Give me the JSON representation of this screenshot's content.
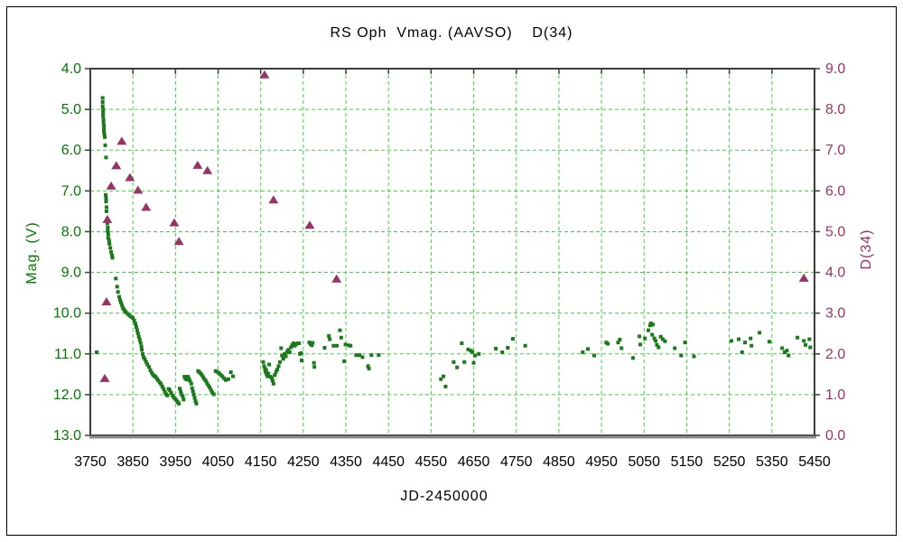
{
  "page": {
    "background": "#ffffff",
    "outer_border_color": "#000000"
  },
  "chart_data": {
    "type": "scatter",
    "title": "RS Oph  Vmag. (AAVSO)    D(34)",
    "xlabel": "JD-2450000",
    "ylabel_left": "Mag. (V)",
    "ylabel_right": "D(34)",
    "x_range": [
      3750,
      5450
    ],
    "y_left_range": [
      4.0,
      13.0
    ],
    "y_left_inverted": true,
    "y_right_range": [
      0.0,
      9.0
    ],
    "grid": true,
    "legend": "none",
    "x_ticks": [
      3750,
      3850,
      3950,
      4050,
      4150,
      4250,
      4350,
      4450,
      4550,
      4650,
      4750,
      4850,
      4950,
      5050,
      5150,
      5250,
      5350,
      5450
    ],
    "x_tick_labels": [
      "3750",
      "3850",
      "3950",
      "4050",
      "4150",
      "4250",
      "4350",
      "4450",
      "4550",
      "4650",
      "4750",
      "4850",
      "4950",
      "5050",
      "5150",
      "5250",
      "5350",
      "5450"
    ],
    "y_left_ticks": [
      4.0,
      5.0,
      6.0,
      7.0,
      8.0,
      9.0,
      10.0,
      11.0,
      12.0,
      13.0
    ],
    "y_left_tick_labels": [
      "4.0",
      "5.0",
      "6.0",
      "7.0",
      "8.0",
      "9.0",
      "10.0",
      "11.0",
      "12.0",
      "13.0"
    ],
    "y_right_ticks": [
      9.0,
      8.0,
      7.0,
      6.0,
      5.0,
      4.0,
      3.0,
      2.0,
      1.0,
      0.0
    ],
    "y_right_tick_labels": [
      "9.0",
      "8.0",
      "7.0",
      "6.0",
      "5.0",
      "4.0",
      "3.0",
      "2.0",
      "1.0",
      "0.0"
    ],
    "colors": {
      "grid": "#3fd43f",
      "frame": "#3c3c3c",
      "frame_bottom": "#909090",
      "vmag_points": "#1a7a1a",
      "d34_points": "#993366",
      "left_axis_text": "#007a00",
      "right_axis_text": "#993366",
      "x_axis_text": "#000000"
    },
    "series": [
      {
        "name": "Vmag (AAVSO)",
        "axis": "left",
        "marker": "square",
        "color": "#1a7a1a",
        "points": [
          [
            3765,
            10.96
          ],
          [
            3779,
            4.72
          ],
          [
            3779,
            4.82
          ],
          [
            3779,
            4.92
          ],
          [
            3780,
            5.0
          ],
          [
            3780,
            5.08
          ],
          [
            3780,
            5.16
          ],
          [
            3781,
            5.25
          ],
          [
            3781,
            5.33
          ],
          [
            3782,
            5.4
          ],
          [
            3782,
            5.47
          ],
          [
            3782,
            5.54
          ],
          [
            3783,
            5.61
          ],
          [
            3784,
            5.68
          ],
          [
            3785,
            5.88
          ],
          [
            3787,
            6.18
          ],
          [
            3786,
            7.1
          ],
          [
            3787,
            7.18
          ],
          [
            3787,
            7.26
          ],
          [
            3788,
            7.4
          ],
          [
            3788,
            7.5
          ],
          [
            3790,
            7.7
          ],
          [
            3790,
            7.8
          ],
          [
            3791,
            7.9
          ],
          [
            3791,
            7.98
          ],
          [
            3792,
            8.06
          ],
          [
            3792,
            8.15
          ],
          [
            3794,
            8.22
          ],
          [
            3795,
            8.3
          ],
          [
            3797,
            8.4
          ],
          [
            3799,
            8.5
          ],
          [
            3801,
            8.58
          ],
          [
            3802,
            8.64
          ],
          [
            3810,
            9.15
          ],
          [
            3813,
            9.35
          ],
          [
            3815,
            9.48
          ],
          [
            3818,
            9.6
          ],
          [
            3820,
            9.68
          ],
          [
            3822,
            9.74
          ],
          [
            3824,
            9.8
          ],
          [
            3826,
            9.86
          ],
          [
            3828,
            9.9
          ],
          [
            3831,
            9.94
          ],
          [
            3834,
            9.98
          ],
          [
            3838,
            10.02
          ],
          [
            3842,
            10.06
          ],
          [
            3846,
            10.09
          ],
          [
            3850,
            10.12
          ],
          [
            3853,
            10.18
          ],
          [
            3856,
            10.26
          ],
          [
            3858,
            10.34
          ],
          [
            3860,
            10.42
          ],
          [
            3862,
            10.5
          ],
          [
            3864,
            10.58
          ],
          [
            3866,
            10.65
          ],
          [
            3868,
            10.73
          ],
          [
            3870,
            10.82
          ],
          [
            3871,
            10.9
          ],
          [
            3873,
            11.0
          ],
          [
            3875,
            11.08
          ],
          [
            3878,
            11.13
          ],
          [
            3881,
            11.2
          ],
          [
            3884,
            11.26
          ],
          [
            3888,
            11.32
          ],
          [
            3891,
            11.4
          ],
          [
            3894,
            11.46
          ],
          [
            3897,
            11.51
          ],
          [
            3900,
            11.54
          ],
          [
            3903,
            11.56
          ],
          [
            3906,
            11.6
          ],
          [
            3909,
            11.65
          ],
          [
            3913,
            11.7
          ],
          [
            3916,
            11.74
          ],
          [
            3919,
            11.8
          ],
          [
            3922,
            11.86
          ],
          [
            3925,
            11.93
          ],
          [
            3928,
            11.99
          ],
          [
            3931,
            12.02
          ],
          [
            3934,
            11.86
          ],
          [
            3937,
            11.9
          ],
          [
            3940,
            11.96
          ],
          [
            3943,
            12.02
          ],
          [
            3946,
            12.07
          ],
          [
            3949,
            12.1
          ],
          [
            3952,
            12.14
          ],
          [
            3955,
            12.18
          ],
          [
            3958,
            12.22
          ],
          [
            3960,
            11.85
          ],
          [
            3962,
            11.92
          ],
          [
            3964,
            11.99
          ],
          [
            3967,
            12.04
          ],
          [
            3969,
            12.12
          ],
          [
            3971,
            11.56
          ],
          [
            3973,
            11.6
          ],
          [
            3976,
            11.63
          ],
          [
            3979,
            11.56
          ],
          [
            3981,
            11.6
          ],
          [
            3984,
            11.66
          ],
          [
            3987,
            11.73
          ],
          [
            3989,
            11.84
          ],
          [
            3991,
            11.92
          ],
          [
            3993,
            12.0
          ],
          [
            3995,
            12.08
          ],
          [
            3997,
            12.16
          ],
          [
            3999,
            12.22
          ],
          [
            4003,
            11.42
          ],
          [
            4006,
            11.45
          ],
          [
            4009,
            11.48
          ],
          [
            4012,
            11.52
          ],
          [
            4015,
            11.57
          ],
          [
            4018,
            11.62
          ],
          [
            4021,
            11.66
          ],
          [
            4024,
            11.72
          ],
          [
            4027,
            11.77
          ],
          [
            4030,
            11.82
          ],
          [
            4033,
            11.88
          ],
          [
            4036,
            11.94
          ],
          [
            4040,
            11.99
          ],
          [
            4044,
            11.42
          ],
          [
            4048,
            11.44
          ],
          [
            4052,
            11.47
          ],
          [
            4056,
            11.51
          ],
          [
            4060,
            11.55
          ],
          [
            4064,
            11.6
          ],
          [
            4068,
            11.64
          ],
          [
            4074,
            11.62
          ],
          [
            4080,
            11.45
          ],
          [
            4085,
            11.55
          ],
          [
            4156,
            11.2
          ],
          [
            4158,
            11.3
          ],
          [
            4160,
            11.36
          ],
          [
            4161,
            11.44
          ],
          [
            4163,
            11.4
          ],
          [
            4164,
            11.5
          ],
          [
            4166,
            11.55
          ],
          [
            4168,
            11.48
          ],
          [
            4170,
            11.26
          ],
          [
            4173,
            11.56
          ],
          [
            4176,
            11.6
          ],
          [
            4178,
            11.66
          ],
          [
            4180,
            11.73
          ],
          [
            4183,
            11.52
          ],
          [
            4186,
            11.44
          ],
          [
            4189,
            11.38
          ],
          [
            4192,
            11.3
          ],
          [
            4195,
            11.2
          ],
          [
            4198,
            10.86
          ],
          [
            4200,
            11.04
          ],
          [
            4203,
            11.12
          ],
          [
            4206,
            11.0
          ],
          [
            4209,
            11.06
          ],
          [
            4212,
            10.95
          ],
          [
            4215,
            10.9
          ],
          [
            4218,
            10.96
          ],
          [
            4221,
            10.84
          ],
          [
            4224,
            10.78
          ],
          [
            4227,
            10.74
          ],
          [
            4230,
            10.8
          ],
          [
            4233,
            10.76
          ],
          [
            4237,
            10.74
          ],
          [
            4240,
            10.74
          ],
          [
            4242,
            11.0
          ],
          [
            4245,
            10.98
          ],
          [
            4246,
            11.16
          ],
          [
            4264,
            10.72
          ],
          [
            4267,
            10.76
          ],
          [
            4270,
            10.79
          ],
          [
            4272,
            10.73
          ],
          [
            4275,
            11.22
          ],
          [
            4276,
            11.32
          ],
          [
            4300,
            10.85
          ],
          [
            4310,
            10.56
          ],
          [
            4312,
            10.64
          ],
          [
            4321,
            10.8
          ],
          [
            4329,
            10.8
          ],
          [
            4336,
            10.42
          ],
          [
            4339,
            10.6
          ],
          [
            4346,
            11.18
          ],
          [
            4349,
            10.77
          ],
          [
            4357,
            10.79
          ],
          [
            4361,
            10.8
          ],
          [
            4374,
            11.03
          ],
          [
            4382,
            11.03
          ],
          [
            4389,
            11.08
          ],
          [
            4402,
            11.3
          ],
          [
            4404,
            11.36
          ],
          [
            4410,
            11.03
          ],
          [
            4427,
            11.03
          ],
          [
            4573,
            11.62
          ],
          [
            4579,
            11.55
          ],
          [
            4584,
            11.8
          ],
          [
            4603,
            11.2
          ],
          [
            4611,
            11.33
          ],
          [
            4622,
            10.74
          ],
          [
            4628,
            11.2
          ],
          [
            4637,
            10.89
          ],
          [
            4643,
            10.92
          ],
          [
            4647,
            10.95
          ],
          [
            4650,
            11.22
          ],
          [
            4653,
            11.04
          ],
          [
            4662,
            11.0
          ],
          [
            4702,
            10.87
          ],
          [
            4717,
            10.96
          ],
          [
            4730,
            10.85
          ],
          [
            4742,
            10.63
          ],
          [
            4771,
            10.8
          ],
          [
            4906,
            10.96
          ],
          [
            4918,
            10.88
          ],
          [
            4933,
            11.04
          ],
          [
            4961,
            10.72
          ],
          [
            4965,
            10.75
          ],
          [
            4989,
            10.72
          ],
          [
            4993,
            10.65
          ],
          [
            4997,
            10.86
          ],
          [
            5024,
            11.1
          ],
          [
            5039,
            10.57
          ],
          [
            5041,
            10.77
          ],
          [
            5052,
            10.62
          ],
          [
            5060,
            10.42
          ],
          [
            5064,
            10.3
          ],
          [
            5066,
            10.25
          ],
          [
            5069,
            10.53
          ],
          [
            5071,
            10.28
          ],
          [
            5074,
            10.62
          ],
          [
            5077,
            10.68
          ],
          [
            5080,
            10.78
          ],
          [
            5084,
            10.84
          ],
          [
            5089,
            10.58
          ],
          [
            5094,
            10.64
          ],
          [
            5099,
            10.69
          ],
          [
            5122,
            10.86
          ],
          [
            5137,
            11.04
          ],
          [
            5146,
            10.72
          ],
          [
            5167,
            11.06
          ],
          [
            5255,
            10.68
          ],
          [
            5272,
            10.64
          ],
          [
            5280,
            10.96
          ],
          [
            5287,
            10.72
          ],
          [
            5300,
            10.62
          ],
          [
            5302,
            10.8
          ],
          [
            5321,
            10.48
          ],
          [
            5344,
            10.7
          ],
          [
            5374,
            10.86
          ],
          [
            5380,
            10.96
          ],
          [
            5385,
            10.92
          ],
          [
            5389,
            11.04
          ],
          [
            5410,
            10.6
          ],
          [
            5425,
            10.68
          ],
          [
            5429,
            10.78
          ],
          [
            5438,
            10.64
          ],
          [
            5440,
            10.84
          ]
        ]
      },
      {
        "name": "D(34)",
        "axis": "right",
        "marker": "triangle",
        "color": "#993366",
        "points": [
          [
            3784,
            1.4
          ],
          [
            3788,
            3.28
          ],
          [
            3790,
            5.3
          ],
          [
            3799,
            6.12
          ],
          [
            3811,
            6.62
          ],
          [
            3824,
            7.22
          ],
          [
            3843,
            6.33
          ],
          [
            3862,
            6.02
          ],
          [
            3881,
            5.6
          ],
          [
            3947,
            5.22
          ],
          [
            3958,
            4.76
          ],
          [
            4002,
            6.63
          ],
          [
            4025,
            6.5
          ],
          [
            4159,
            8.85
          ],
          [
            4180,
            5.78
          ],
          [
            4265,
            5.16
          ],
          [
            4328,
            3.84
          ],
          [
            5425,
            3.86
          ]
        ]
      }
    ]
  }
}
